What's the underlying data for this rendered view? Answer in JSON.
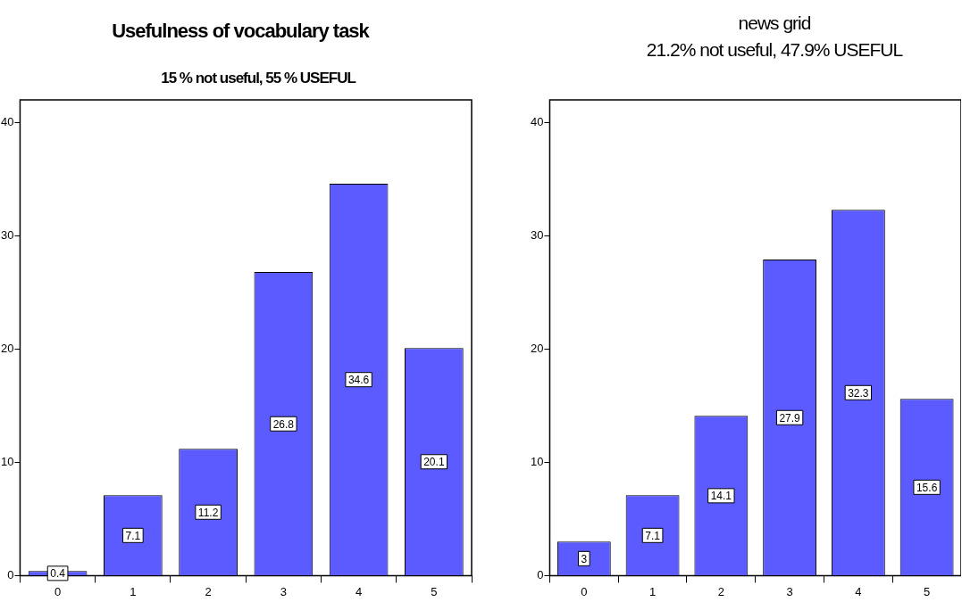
{
  "chart_data": [
    {
      "type": "bar",
      "title": "Usefulness of vocabulary task",
      "subtitle": "15 % not useful, 55 % USEFUL",
      "categories": [
        "0",
        "1",
        "2",
        "3",
        "4",
        "5"
      ],
      "values": [
        0.4,
        7.1,
        11.2,
        26.8,
        34.6,
        20.1
      ],
      "color": "#5b5bff",
      "ylim": [
        0,
        42
      ],
      "yticks": [
        0,
        10,
        20,
        30,
        40
      ],
      "data_labels": true
    },
    {
      "type": "bar",
      "title": "news grid",
      "subtitle": "21.2% not useful, 47.9% USEFUL",
      "categories": [
        "0",
        "1",
        "2",
        "3",
        "4",
        "5"
      ],
      "values": [
        3,
        7.1,
        14.1,
        27.9,
        32.3,
        15.6
      ],
      "color": "#5b5bff",
      "ylim": [
        0,
        42
      ],
      "yticks": [
        0,
        10,
        20,
        30,
        40
      ],
      "data_labels": true
    }
  ]
}
